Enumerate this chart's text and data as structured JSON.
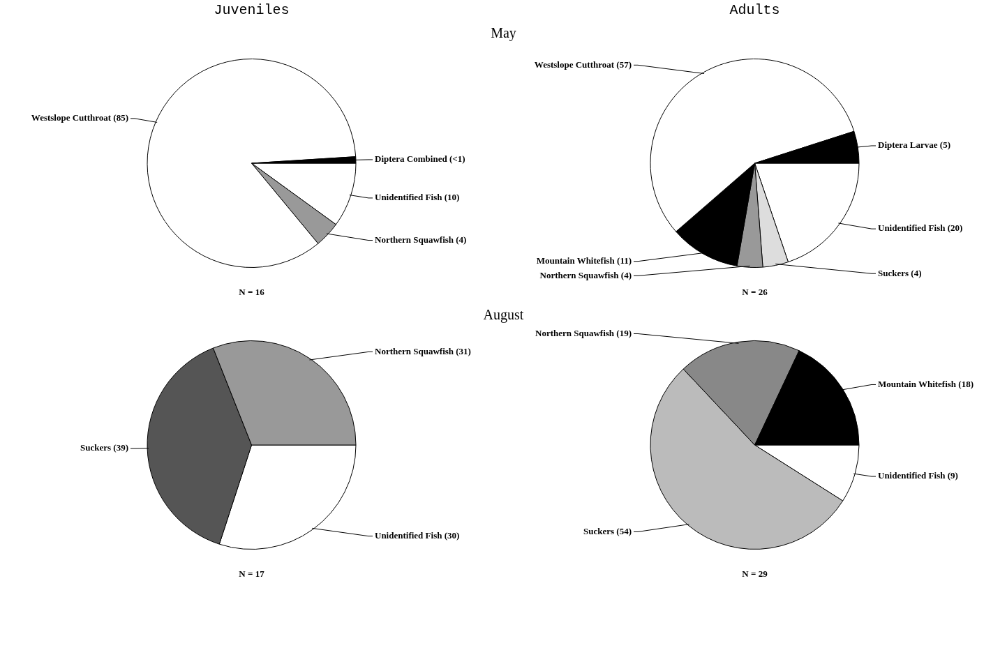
{
  "chart_data": [
    {
      "type": "pie",
      "title": "Juveniles",
      "subtitle": "May",
      "categories": [
        "Unidentified Fish",
        "Northern Squawfish",
        "Westslope Cutthroat",
        "Diptera Combined"
      ],
      "values": [
        10,
        4,
        85,
        1
      ],
      "value_labels": [
        "(10)",
        "(4)",
        "(85)",
        "(<1)"
      ],
      "colors": [
        "#ffffff",
        "#999999",
        "#ffffff",
        "#000000"
      ],
      "legend": false,
      "annotations": [
        "N = 16"
      ]
    },
    {
      "type": "pie",
      "title": "Adults",
      "categories": [
        "Unidentified Fish",
        "Suckers",
        "Northern Squawfish",
        "Mountain Whitefish",
        "Westslope Cutthroat",
        "Diptera Larvae"
      ],
      "values": [
        20,
        4,
        4,
        11,
        57,
        5
      ],
      "value_labels": [
        "(20)",
        "(4)",
        "(4)",
        "(11)",
        "(57)",
        "(5)"
      ],
      "colors": [
        "#ffffff",
        "#dddddd",
        "#999999",
        "#000000",
        "#ffffff",
        "#000000"
      ],
      "legend": false,
      "annotations": [
        "N = 26"
      ]
    },
    {
      "type": "pie",
      "subtitle": "August",
      "categories": [
        "Unidentified Fish",
        "Suckers",
        "Northern Squawfish"
      ],
      "values": [
        30,
        39,
        31
      ],
      "value_labels": [
        "(30)",
        "(39)",
        "(31)"
      ],
      "colors": [
        "#ffffff",
        "#555555",
        "#999999"
      ],
      "legend": false,
      "annotations": [
        "N = 17"
      ]
    },
    {
      "type": "pie",
      "categories": [
        "Unidentified Fish",
        "Suckers",
        "Northern Squawfish",
        "Mountain Whitefish"
      ],
      "values": [
        9,
        54,
        19,
        18
      ],
      "value_labels": [
        "(9)",
        "(54)",
        "(19)",
        "(18)"
      ],
      "colors": [
        "#ffffff",
        "#bbbbbb",
        "#888888",
        "#000000"
      ],
      "legend": false,
      "annotations": [
        "N = 29"
      ]
    }
  ]
}
